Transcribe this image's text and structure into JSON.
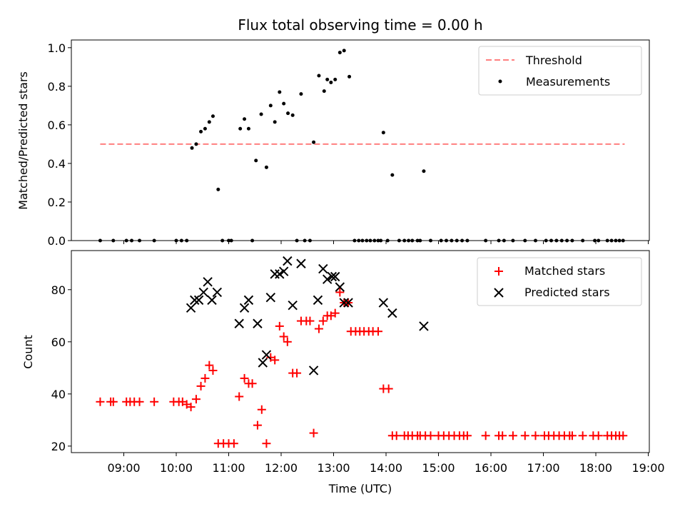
{
  "chart_data": [
    {
      "type": "scatter",
      "title": "Flux total observing time = 0.00 h",
      "xlabel": "",
      "ylabel": "Matched/Predicted stars",
      "ylim": [
        0.0,
        1.04
      ],
      "yticks": [
        0.0,
        0.2,
        0.4,
        0.6,
        0.8,
        1.0
      ],
      "ytick_labels": [
        "0.0",
        "0.2",
        "0.4",
        "0.6",
        "0.8",
        "1.0"
      ],
      "legend": [
        {
          "label": "Threshold",
          "color": "#ff7f7f",
          "marker": "dashed-line"
        },
        {
          "label": "Measurements",
          "color": "#000000",
          "marker": "dot"
        }
      ],
      "legend_loc": "upper right",
      "threshold": {
        "name": "Threshold",
        "y": 0.5,
        "x_start": 8.55,
        "x_end": 18.55
      },
      "series": [
        {
          "name": "Measurements",
          "points": [
            [
              8.55,
              0
            ],
            [
              8.8,
              0
            ],
            [
              9.05,
              0
            ],
            [
              9.15,
              0
            ],
            [
              9.3,
              0
            ],
            [
              9.58,
              0
            ],
            [
              10.0,
              0
            ],
            [
              10.1,
              0
            ],
            [
              10.2,
              0
            ],
            [
              10.3,
              0.48
            ],
            [
              10.38,
              0.5
            ],
            [
              10.47,
              0.565
            ],
            [
              10.55,
              0.58
            ],
            [
              10.63,
              0.615
            ],
            [
              10.7,
              0.645
            ],
            [
              10.8,
              0.265
            ],
            [
              10.88,
              0
            ],
            [
              11.0,
              0
            ],
            [
              11.05,
              0
            ],
            [
              11.22,
              0.58
            ],
            [
              11.3,
              0.63
            ],
            [
              11.38,
              0.58
            ],
            [
              11.52,
              0.415
            ],
            [
              11.62,
              0.655
            ],
            [
              11.72,
              0.38
            ],
            [
              11.8,
              0.7
            ],
            [
              11.88,
              0.615
            ],
            [
              11.97,
              0.77
            ],
            [
              12.05,
              0.71
            ],
            [
              12.13,
              0.66
            ],
            [
              12.22,
              0.65
            ],
            [
              12.38,
              0.76
            ],
            [
              12.62,
              0.51
            ],
            [
              12.72,
              0.855
            ],
            [
              12.82,
              0.775
            ],
            [
              12.88,
              0.835
            ],
            [
              12.95,
              0.82
            ],
            [
              13.03,
              0.835
            ],
            [
              13.12,
              0.975
            ],
            [
              13.2,
              0.985
            ],
            [
              13.3,
              0.85
            ],
            [
              13.95,
              0.56
            ],
            [
              14.12,
              0.34
            ],
            [
              14.72,
              0.36
            ],
            [
              11.45,
              0
            ],
            [
              12.3,
              0
            ],
            [
              12.45,
              0
            ],
            [
              12.55,
              0
            ],
            [
              13.4,
              0
            ],
            [
              13.48,
              0
            ],
            [
              13.55,
              0
            ],
            [
              13.63,
              0
            ],
            [
              13.7,
              0
            ],
            [
              13.78,
              0
            ],
            [
              13.85,
              0
            ],
            [
              13.9,
              0
            ],
            [
              14.03,
              0
            ],
            [
              14.25,
              0
            ],
            [
              14.35,
              0
            ],
            [
              14.43,
              0
            ],
            [
              14.5,
              0
            ],
            [
              14.6,
              0
            ],
            [
              14.65,
              0
            ],
            [
              14.85,
              0
            ],
            [
              15.05,
              0
            ],
            [
              15.15,
              0
            ],
            [
              15.25,
              0
            ],
            [
              15.35,
              0
            ],
            [
              15.45,
              0
            ],
            [
              15.55,
              0
            ],
            [
              15.9,
              0
            ],
            [
              16.15,
              0
            ],
            [
              16.25,
              0
            ],
            [
              16.42,
              0
            ],
            [
              16.65,
              0
            ],
            [
              16.85,
              0
            ],
            [
              17.05,
              0
            ],
            [
              17.15,
              0
            ],
            [
              17.25,
              0
            ],
            [
              17.35,
              0
            ],
            [
              17.45,
              0
            ],
            [
              17.55,
              0
            ],
            [
              17.75,
              0
            ],
            [
              17.98,
              0
            ],
            [
              18.05,
              0
            ],
            [
              18.22,
              0
            ],
            [
              18.3,
              0
            ],
            [
              18.38,
              0
            ],
            [
              18.45,
              0
            ],
            [
              18.52,
              0
            ]
          ]
        }
      ]
    },
    {
      "type": "scatter",
      "title": "",
      "xlabel": "Time (UTC)",
      "ylabel": "Count",
      "ylim": [
        17.5,
        95
      ],
      "yticks": [
        20,
        40,
        60,
        80
      ],
      "ytick_labels": [
        "20",
        "40",
        "60",
        "80"
      ],
      "xlim": [
        8.0,
        19.02
      ],
      "xticks": [
        9,
        10,
        11,
        12,
        13,
        14,
        15,
        16,
        17,
        18,
        19
      ],
      "xtick_labels": [
        "09:00",
        "10:00",
        "11:00",
        "12:00",
        "13:00",
        "14:00",
        "15:00",
        "16:00",
        "17:00",
        "18:00",
        "19:00"
      ],
      "legend": [
        {
          "label": "Matched stars",
          "color": "#ff0000",
          "marker": "plus"
        },
        {
          "label": "Predicted stars",
          "color": "#000000",
          "marker": "x"
        }
      ],
      "legend_loc": "upper right",
      "series": [
        {
          "name": "Matched stars",
          "color": "#ff0000",
          "points": [
            [
              8.55,
              37
            ],
            [
              8.75,
              37
            ],
            [
              8.8,
              37
            ],
            [
              9.05,
              37
            ],
            [
              9.12,
              37
            ],
            [
              9.2,
              37
            ],
            [
              9.3,
              37
            ],
            [
              9.58,
              37
            ],
            [
              9.95,
              37
            ],
            [
              10.05,
              37
            ],
            [
              10.12,
              37
            ],
            [
              10.2,
              36
            ],
            [
              10.28,
              35
            ],
            [
              10.38,
              38
            ],
            [
              10.47,
              43
            ],
            [
              10.55,
              46
            ],
            [
              10.63,
              51
            ],
            [
              10.7,
              49
            ],
            [
              10.8,
              21
            ],
            [
              10.9,
              21
            ],
            [
              11.0,
              21
            ],
            [
              11.1,
              21
            ],
            [
              11.2,
              39
            ],
            [
              11.3,
              46
            ],
            [
              11.38,
              44
            ],
            [
              11.45,
              44
            ],
            [
              11.55,
              28
            ],
            [
              11.63,
              34
            ],
            [
              11.72,
              21
            ],
            [
              11.8,
              54
            ],
            [
              11.88,
              53
            ],
            [
              11.97,
              66
            ],
            [
              12.05,
              62
            ],
            [
              12.12,
              60
            ],
            [
              12.22,
              48
            ],
            [
              12.3,
              48
            ],
            [
              12.38,
              68
            ],
            [
              12.48,
              68
            ],
            [
              12.55,
              68
            ],
            [
              12.62,
              25
            ],
            [
              12.72,
              65
            ],
            [
              12.8,
              68
            ],
            [
              12.88,
              70
            ],
            [
              12.95,
              70
            ],
            [
              13.03,
              71
            ],
            [
              13.12,
              79
            ],
            [
              13.2,
              75
            ],
            [
              13.28,
              75
            ],
            [
              13.33,
              64
            ],
            [
              13.42,
              64
            ],
            [
              13.5,
              64
            ],
            [
              13.58,
              64
            ],
            [
              13.67,
              64
            ],
            [
              13.75,
              64
            ],
            [
              13.85,
              64
            ],
            [
              13.95,
              42
            ],
            [
              14.05,
              42
            ],
            [
              14.12,
              24
            ],
            [
              14.2,
              24
            ],
            [
              14.35,
              24
            ],
            [
              14.42,
              24
            ],
            [
              14.5,
              24
            ],
            [
              14.6,
              24
            ],
            [
              14.65,
              24
            ],
            [
              14.75,
              24
            ],
            [
              14.85,
              24
            ],
            [
              15.0,
              24
            ],
            [
              15.1,
              24
            ],
            [
              15.2,
              24
            ],
            [
              15.3,
              24
            ],
            [
              15.4,
              24
            ],
            [
              15.48,
              24
            ],
            [
              15.55,
              24
            ],
            [
              15.9,
              24
            ],
            [
              16.15,
              24
            ],
            [
              16.22,
              24
            ],
            [
              16.42,
              24
            ],
            [
              16.65,
              24
            ],
            [
              16.85,
              24
            ],
            [
              17.02,
              24
            ],
            [
              17.1,
              24
            ],
            [
              17.2,
              24
            ],
            [
              17.3,
              24
            ],
            [
              17.4,
              24
            ],
            [
              17.5,
              24
            ],
            [
              17.55,
              24
            ],
            [
              17.75,
              24
            ],
            [
              17.95,
              24
            ],
            [
              18.05,
              24
            ],
            [
              18.22,
              24
            ],
            [
              18.3,
              24
            ],
            [
              18.38,
              24
            ],
            [
              18.45,
              24
            ],
            [
              18.52,
              24
            ]
          ]
        },
        {
          "name": "Predicted stars",
          "color": "#000000",
          "points": [
            [
              10.28,
              73
            ],
            [
              10.35,
              76
            ],
            [
              10.43,
              76
            ],
            [
              10.52,
              79
            ],
            [
              10.6,
              83
            ],
            [
              10.68,
              76
            ],
            [
              10.78,
              79
            ],
            [
              11.2,
              67
            ],
            [
              11.3,
              73
            ],
            [
              11.38,
              76
            ],
            [
              11.55,
              67
            ],
            [
              11.65,
              52
            ],
            [
              11.72,
              55
            ],
            [
              11.8,
              77
            ],
            [
              11.88,
              86
            ],
            [
              11.97,
              86
            ],
            [
              12.05,
              87
            ],
            [
              12.12,
              91
            ],
            [
              12.22,
              74
            ],
            [
              12.38,
              90
            ],
            [
              12.62,
              49
            ],
            [
              12.7,
              76
            ],
            [
              12.8,
              88
            ],
            [
              12.88,
              84
            ],
            [
              12.97,
              85
            ],
            [
              13.03,
              85
            ],
            [
              13.12,
              81
            ],
            [
              13.2,
              75
            ],
            [
              13.28,
              75
            ],
            [
              13.95,
              75
            ],
            [
              14.12,
              71
            ],
            [
              14.72,
              66
            ]
          ]
        }
      ]
    }
  ]
}
